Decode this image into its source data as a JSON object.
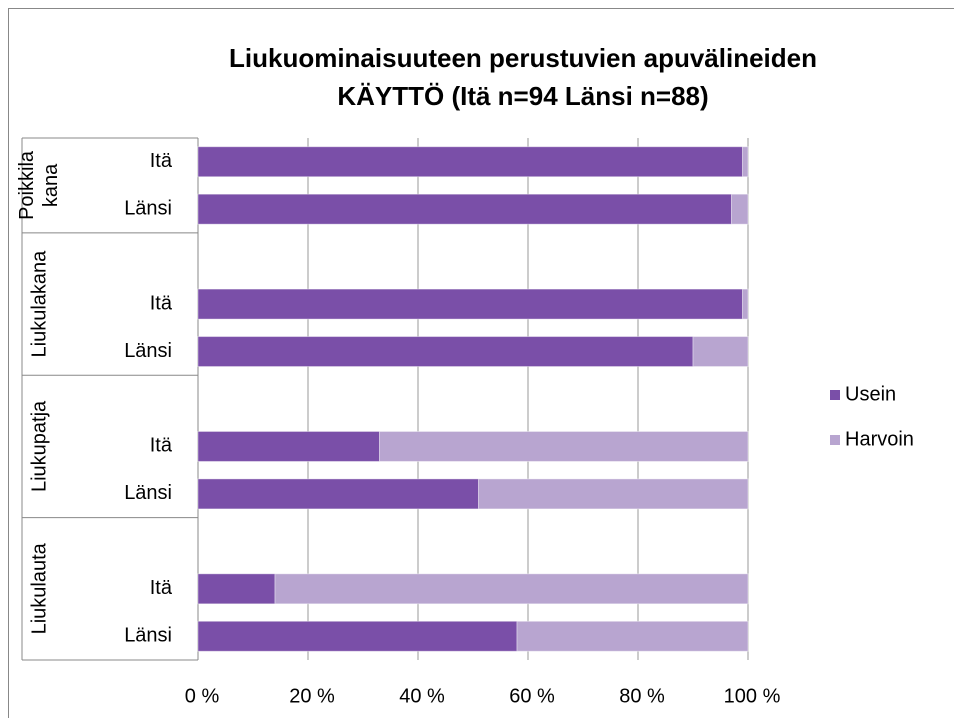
{
  "chart_data": {
    "type": "bar",
    "orientation": "horizontal",
    "stacked": true,
    "title": [
      "Liukuominaisuuteen perustuvien apuvälineiden",
      "KÄYTTÖ (Itä n=94  Länsi n=88)"
    ],
    "groups": [
      "Poikkilakana",
      "Liukulakana",
      "Liukupatja",
      "Liukulauta"
    ],
    "categories": [
      "Itä",
      "Länsi",
      null,
      "Itä",
      "Länsi",
      null,
      "Itä",
      "Länsi",
      null,
      "Itä",
      "Länsi"
    ],
    "series": [
      {
        "name": "Usein",
        "color": "#7a4fa8",
        "values": [
          99,
          97,
          null,
          99,
          90,
          null,
          33,
          51,
          null,
          14,
          58
        ]
      },
      {
        "name": "Harvoin",
        "color": "#b8a5d0",
        "values": [
          1,
          3,
          null,
          1,
          10,
          null,
          67,
          49,
          null,
          86,
          42
        ]
      }
    ],
    "xlim": [
      0,
      100
    ],
    "xticks": [
      {
        "value": 0,
        "label": "0 %"
      },
      {
        "value": 20,
        "label": "20 %"
      },
      {
        "value": 40,
        "label": "40 %"
      },
      {
        "value": 60,
        "label": "60 %"
      },
      {
        "value": 80,
        "label": "80 %"
      },
      {
        "value": 100,
        "label": "100 %"
      }
    ],
    "grid": true,
    "legend": "right"
  }
}
